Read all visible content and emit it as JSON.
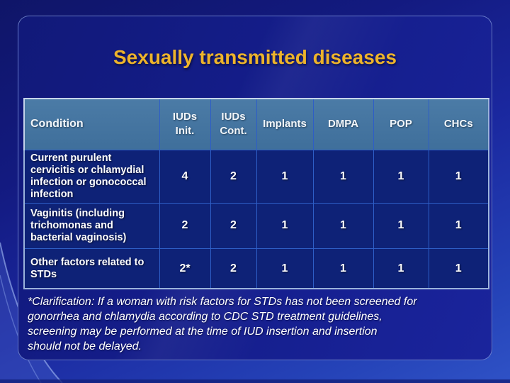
{
  "slide": {
    "title": "Sexually transmitted diseases"
  },
  "table": {
    "columns": [
      "Condition",
      "IUDs Init.",
      "IUDs Cont.",
      "Implants",
      "DMPA",
      "POP",
      "CHCs"
    ],
    "rows": [
      {
        "condition": "Current purulent cervicitis or chlamydial infection or gonococcal infection",
        "values": [
          "4",
          "2",
          "1",
          "1",
          "1",
          "1"
        ]
      },
      {
        "condition": "Vaginitis (including trichomonas and bacterial vaginosis)",
        "values": [
          "2",
          "2",
          "1",
          "1",
          "1",
          "1"
        ]
      },
      {
        "condition": "Other factors related to STDs",
        "values": [
          "2*",
          "2",
          "1",
          "1",
          "1",
          "1"
        ]
      }
    ]
  },
  "note": {
    "lines": [
      "*Clarification: If a woman with risk factors for STDs has not been screened for",
      "gonorrhea and chlamydia according to CDC STD treatment guidelines,",
      "screening may be performed at the time of IUD insertion and insertion",
      "should not be delayed."
    ]
  },
  "colors": {
    "title_gold": "#EDB32B",
    "header_blue": "#44749D",
    "cell_navy": "#0E2277",
    "grid_blue": "#2E5EC6",
    "background_blue": "#141D8A",
    "text_white": "#FFFFFF"
  }
}
